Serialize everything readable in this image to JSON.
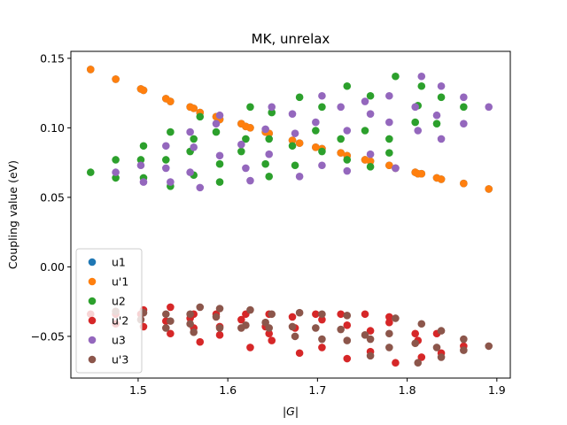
{
  "chart_data": {
    "type": "scatter",
    "title": "MK, unrelax",
    "xlabel": "|G|",
    "ylabel": "Coupling value (eV)",
    "xlim": [
      1.425,
      1.915
    ],
    "ylim": [
      -0.08,
      0.155
    ],
    "xticks": [
      1.5,
      1.6,
      1.7,
      1.8,
      1.9
    ],
    "xtick_labels": [
      "1.5",
      "1.6",
      "1.7",
      "1.8",
      "1.9"
    ],
    "yticks": [
      -0.05,
      0.0,
      0.05,
      0.1,
      0.15
    ],
    "ytick_labels": [
      "−0.05",
      "0.00",
      "0.05",
      "0.10",
      "0.15"
    ],
    "grid": false,
    "legend_position": "lower-left",
    "series": [
      {
        "name": "u1",
        "color": "#1f77b4",
        "points": [
          [
            1.447,
            0.142
          ],
          [
            1.475,
            0.135
          ],
          [
            1.503,
            0.128
          ],
          [
            1.506,
            0.127
          ],
          [
            1.531,
            0.121
          ],
          [
            1.536,
            0.119
          ],
          [
            1.558,
            0.115
          ],
          [
            1.562,
            0.114
          ],
          [
            1.569,
            0.111
          ],
          [
            1.587,
            0.108
          ],
          [
            1.591,
            0.106
          ],
          [
            1.615,
            0.103
          ],
          [
            1.62,
            0.101
          ],
          [
            1.625,
            0.1
          ],
          [
            1.642,
            0.097
          ],
          [
            1.646,
            0.096
          ],
          [
            1.672,
            0.091
          ],
          [
            1.68,
            0.089
          ],
          [
            1.698,
            0.086
          ],
          [
            1.705,
            0.085
          ],
          [
            1.726,
            0.082
          ],
          [
            1.733,
            0.08
          ],
          [
            1.753,
            0.077
          ],
          [
            1.759,
            0.076
          ],
          [
            1.78,
            0.073
          ],
          [
            1.787,
            0.071
          ],
          [
            1.809,
            0.068
          ],
          [
            1.812,
            0.067
          ],
          [
            1.816,
            0.067
          ],
          [
            1.833,
            0.064
          ],
          [
            1.838,
            0.063
          ],
          [
            1.863,
            0.06
          ],
          [
            1.891,
            0.056
          ]
        ]
      },
      {
        "name": "u'1",
        "color": "#ff7f0e",
        "points": [
          [
            1.447,
            0.142
          ],
          [
            1.475,
            0.135
          ],
          [
            1.503,
            0.128
          ],
          [
            1.506,
            0.127
          ],
          [
            1.531,
            0.121
          ],
          [
            1.536,
            0.119
          ],
          [
            1.558,
            0.115
          ],
          [
            1.562,
            0.114
          ],
          [
            1.569,
            0.111
          ],
          [
            1.587,
            0.108
          ],
          [
            1.591,
            0.106
          ],
          [
            1.615,
            0.103
          ],
          [
            1.62,
            0.101
          ],
          [
            1.625,
            0.1
          ],
          [
            1.642,
            0.097
          ],
          [
            1.646,
            0.096
          ],
          [
            1.672,
            0.091
          ],
          [
            1.68,
            0.089
          ],
          [
            1.698,
            0.086
          ],
          [
            1.705,
            0.085
          ],
          [
            1.726,
            0.082
          ],
          [
            1.733,
            0.08
          ],
          [
            1.753,
            0.077
          ],
          [
            1.759,
            0.076
          ],
          [
            1.78,
            0.073
          ],
          [
            1.787,
            0.071
          ],
          [
            1.809,
            0.068
          ],
          [
            1.812,
            0.067
          ],
          [
            1.816,
            0.067
          ],
          [
            1.833,
            0.064
          ],
          [
            1.838,
            0.063
          ],
          [
            1.863,
            0.06
          ],
          [
            1.891,
            0.056
          ]
        ]
      },
      {
        "name": "u2",
        "color": "#2ca02c",
        "points": [
          [
            1.447,
            0.068
          ],
          [
            1.475,
            0.077
          ],
          [
            1.475,
            0.064
          ],
          [
            1.503,
            0.077
          ],
          [
            1.506,
            0.087
          ],
          [
            1.506,
            0.064
          ],
          [
            1.531,
            0.077
          ],
          [
            1.536,
            0.097
          ],
          [
            1.536,
            0.058
          ],
          [
            1.558,
            0.083
          ],
          [
            1.562,
            0.092
          ],
          [
            1.562,
            0.066
          ],
          [
            1.569,
            0.108
          ],
          [
            1.587,
            0.097
          ],
          [
            1.591,
            0.074
          ],
          [
            1.591,
            0.061
          ],
          [
            1.615,
            0.083
          ],
          [
            1.62,
            0.092
          ],
          [
            1.625,
            0.115
          ],
          [
            1.642,
            0.074
          ],
          [
            1.646,
            0.092
          ],
          [
            1.646,
            0.065
          ],
          [
            1.649,
            0.111
          ],
          [
            1.672,
            0.087
          ],
          [
            1.675,
            0.073
          ],
          [
            1.68,
            0.122
          ],
          [
            1.698,
            0.098
          ],
          [
            1.705,
            0.083
          ],
          [
            1.705,
            0.115
          ],
          [
            1.726,
            0.092
          ],
          [
            1.733,
            0.077
          ],
          [
            1.733,
            0.13
          ],
          [
            1.753,
            0.098
          ],
          [
            1.759,
            0.072
          ],
          [
            1.759,
            0.123
          ],
          [
            1.78,
            0.092
          ],
          [
            1.78,
            0.082
          ],
          [
            1.787,
            0.137
          ],
          [
            1.809,
            0.104
          ],
          [
            1.812,
            0.116
          ],
          [
            1.816,
            0.13
          ],
          [
            1.833,
            0.103
          ],
          [
            1.838,
            0.122
          ],
          [
            1.863,
            0.115
          ]
        ]
      },
      {
        "name": "u'2",
        "color": "#d62728",
        "points": [
          [
            1.447,
            -0.034
          ],
          [
            1.475,
            -0.034
          ],
          [
            1.475,
            -0.041
          ],
          [
            1.503,
            -0.034
          ],
          [
            1.506,
            -0.031
          ],
          [
            1.506,
            -0.043
          ],
          [
            1.531,
            -0.039
          ],
          [
            1.536,
            -0.029
          ],
          [
            1.536,
            -0.048
          ],
          [
            1.558,
            -0.037
          ],
          [
            1.562,
            -0.034
          ],
          [
            1.562,
            -0.044
          ],
          [
            1.569,
            -0.054
          ],
          [
            1.587,
            -0.034
          ],
          [
            1.591,
            -0.043
          ],
          [
            1.591,
            -0.049
          ],
          [
            1.615,
            -0.038
          ],
          [
            1.62,
            -0.034
          ],
          [
            1.625,
            -0.058
          ],
          [
            1.642,
            -0.043
          ],
          [
            1.646,
            -0.034
          ],
          [
            1.646,
            -0.048
          ],
          [
            1.649,
            -0.053
          ],
          [
            1.672,
            -0.036
          ],
          [
            1.675,
            -0.044
          ],
          [
            1.68,
            -0.062
          ],
          [
            1.698,
            -0.034
          ],
          [
            1.705,
            -0.038
          ],
          [
            1.705,
            -0.058
          ],
          [
            1.726,
            -0.034
          ],
          [
            1.733,
            -0.042
          ],
          [
            1.733,
            -0.066
          ],
          [
            1.753,
            -0.034
          ],
          [
            1.759,
            -0.046
          ],
          [
            1.759,
            -0.061
          ],
          [
            1.78,
            -0.036
          ],
          [
            1.78,
            -0.04
          ],
          [
            1.787,
            -0.069
          ],
          [
            1.809,
            -0.048
          ],
          [
            1.812,
            -0.053
          ],
          [
            1.816,
            -0.065
          ],
          [
            1.833,
            -0.048
          ],
          [
            1.838,
            -0.062
          ],
          [
            1.863,
            -0.057
          ]
        ]
      },
      {
        "name": "u3",
        "color": "#9467bd",
        "points": [
          [
            1.475,
            0.068
          ],
          [
            1.503,
            0.073
          ],
          [
            1.506,
            0.061
          ],
          [
            1.531,
            0.087
          ],
          [
            1.531,
            0.071
          ],
          [
            1.536,
            0.061
          ],
          [
            1.558,
            0.097
          ],
          [
            1.558,
            0.068
          ],
          [
            1.562,
            0.086
          ],
          [
            1.569,
            0.057
          ],
          [
            1.587,
            0.103
          ],
          [
            1.591,
            0.109
          ],
          [
            1.591,
            0.08
          ],
          [
            1.615,
            0.088
          ],
          [
            1.62,
            0.071
          ],
          [
            1.625,
            0.062
          ],
          [
            1.642,
            0.099
          ],
          [
            1.646,
            0.081
          ],
          [
            1.649,
            0.115
          ],
          [
            1.672,
            0.11
          ],
          [
            1.675,
            0.096
          ],
          [
            1.68,
            0.065
          ],
          [
            1.698,
            0.104
          ],
          [
            1.705,
            0.123
          ],
          [
            1.705,
            0.073
          ],
          [
            1.726,
            0.115
          ],
          [
            1.733,
            0.098
          ],
          [
            1.733,
            0.069
          ],
          [
            1.753,
            0.119
          ],
          [
            1.759,
            0.11
          ],
          [
            1.759,
            0.081
          ],
          [
            1.78,
            0.123
          ],
          [
            1.78,
            0.104
          ],
          [
            1.787,
            0.071
          ],
          [
            1.809,
            0.115
          ],
          [
            1.812,
            0.098
          ],
          [
            1.816,
            0.137
          ],
          [
            1.833,
            0.109
          ],
          [
            1.838,
            0.13
          ],
          [
            1.838,
            0.092
          ],
          [
            1.863,
            0.122
          ],
          [
            1.863,
            0.103
          ],
          [
            1.891,
            0.115
          ]
        ]
      },
      {
        "name": "u'3",
        "color": "#8c564b",
        "points": [
          [
            1.475,
            -0.032
          ],
          [
            1.503,
            -0.038
          ],
          [
            1.506,
            -0.033
          ],
          [
            1.531,
            -0.034
          ],
          [
            1.531,
            -0.044
          ],
          [
            1.536,
            -0.039
          ],
          [
            1.558,
            -0.034
          ],
          [
            1.558,
            -0.041
          ],
          [
            1.562,
            -0.047
          ],
          [
            1.569,
            -0.029
          ],
          [
            1.587,
            -0.036
          ],
          [
            1.591,
            -0.03
          ],
          [
            1.591,
            -0.044
          ],
          [
            1.615,
            -0.044
          ],
          [
            1.62,
            -0.042
          ],
          [
            1.625,
            -0.031
          ],
          [
            1.642,
            -0.04
          ],
          [
            1.646,
            -0.044
          ],
          [
            1.649,
            -0.034
          ],
          [
            1.672,
            -0.043
          ],
          [
            1.675,
            -0.05
          ],
          [
            1.68,
            -0.033
          ],
          [
            1.698,
            -0.044
          ],
          [
            1.705,
            -0.034
          ],
          [
            1.705,
            -0.052
          ],
          [
            1.726,
            -0.045
          ],
          [
            1.733,
            -0.053
          ],
          [
            1.733,
            -0.035
          ],
          [
            1.753,
            -0.049
          ],
          [
            1.759,
            -0.052
          ],
          [
            1.759,
            -0.064
          ],
          [
            1.78,
            -0.048
          ],
          [
            1.78,
            -0.058
          ],
          [
            1.787,
            -0.037
          ],
          [
            1.809,
            -0.055
          ],
          [
            1.812,
            -0.069
          ],
          [
            1.816,
            -0.041
          ],
          [
            1.833,
            -0.058
          ],
          [
            1.838,
            -0.046
          ],
          [
            1.838,
            -0.065
          ],
          [
            1.863,
            -0.052
          ],
          [
            1.863,
            -0.06
          ],
          [
            1.891,
            -0.057
          ]
        ]
      }
    ]
  }
}
